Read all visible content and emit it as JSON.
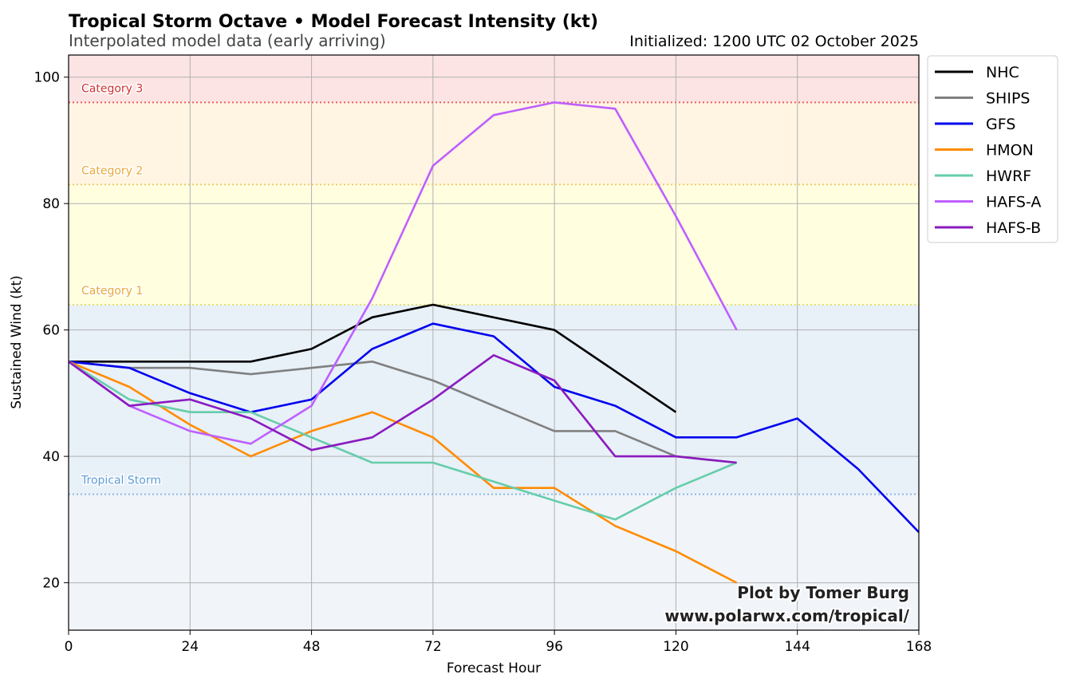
{
  "chart_data": {
    "type": "line",
    "title": "Tropical Storm Octave • Model Forecast Intensity (kt)",
    "subtitle": "Interpolated model data (early arriving)",
    "initialized": "Initialized: 1200 UTC 02 October 2025",
    "xlabel": "Forecast Hour",
    "ylabel": "Sustained Wind (kt)",
    "xlim": [
      0,
      168
    ],
    "ylim": [
      12.5,
      103.5
    ],
    "xticks": [
      0,
      24,
      48,
      72,
      96,
      120,
      144,
      168
    ],
    "yticks": [
      20,
      40,
      60,
      80,
      100
    ],
    "grid": true,
    "legend_position": "outside-upper-right",
    "bands": [
      {
        "from": 12.5,
        "to": 34,
        "color": "#f1f5fa"
      },
      {
        "from": 34,
        "to": 64,
        "color": "#e8f0f8"
      },
      {
        "from": 64,
        "to": 83,
        "color": "#ffffe0"
      },
      {
        "from": 83,
        "to": 96,
        "color": "#fff5e2"
      },
      {
        "from": 96,
        "to": 103.5,
        "color": "#fde4e4"
      }
    ],
    "thresholds": [
      {
        "label": "Tropical Storm",
        "value": 34,
        "color": "#5b9bd5",
        "line_color": "#8ab6e0"
      },
      {
        "label": "Category 1",
        "value": 64,
        "color": "#e8a93a",
        "line_color": "#e6e070"
      },
      {
        "label": "Category 2",
        "value": 83,
        "color": "#e8a93a",
        "line_color": "#f2c870"
      },
      {
        "label": "Category 3",
        "value": 96,
        "color": "#d03030",
        "line_color": "#e86060"
      }
    ],
    "series": [
      {
        "name": "NHC",
        "color": "#000000",
        "x": [
          0,
          12,
          24,
          36,
          48,
          60,
          72,
          96,
          120
        ],
        "y": [
          55,
          55,
          55,
          55,
          57,
          62,
          64,
          60,
          47
        ]
      },
      {
        "name": "SHIPS",
        "color": "#808080",
        "x": [
          0,
          12,
          24,
          36,
          48,
          60,
          72,
          96,
          108,
          120,
          132
        ],
        "y": [
          55,
          54,
          54,
          53,
          54,
          55,
          52,
          44,
          44,
          40,
          39
        ]
      },
      {
        "name": "GFS",
        "color": "#0000ee",
        "x": [
          0,
          12,
          24,
          36,
          48,
          60,
          72,
          84,
          96,
          108,
          120,
          132,
          144,
          156,
          168
        ],
        "y": [
          55,
          54,
          50,
          47,
          49,
          57,
          61,
          59,
          51,
          48,
          43,
          43,
          46,
          38,
          28
        ]
      },
      {
        "name": "HMON",
        "color": "#ff8c00",
        "x": [
          0,
          12,
          24,
          36,
          48,
          60,
          72,
          84,
          96,
          108,
          120,
          132
        ],
        "y": [
          55,
          51,
          45,
          40,
          44,
          47,
          43,
          35,
          35,
          29,
          25,
          20
        ]
      },
      {
        "name": "HWRF",
        "color": "#66cdaa",
        "x": [
          0,
          12,
          24,
          36,
          48,
          60,
          72,
          84,
          96,
          108,
          120,
          132
        ],
        "y": [
          55,
          49,
          47,
          47,
          43,
          39,
          39,
          36,
          33,
          30,
          35,
          39
        ]
      },
      {
        "name": "HAFS-A",
        "color": "#bf5fff",
        "x": [
          0,
          12,
          24,
          36,
          48,
          60,
          72,
          84,
          96,
          108,
          120,
          132
        ],
        "y": [
          55,
          48,
          44,
          42,
          48,
          65,
          86,
          94,
          96,
          95,
          78,
          60
        ]
      },
      {
        "name": "HAFS-B",
        "color": "#8a1bbf",
        "x": [
          0,
          12,
          24,
          36,
          48,
          60,
          72,
          84,
          96,
          108,
          120,
          132
        ],
        "y": [
          55,
          48,
          49,
          46,
          41,
          43,
          49,
          56,
          52,
          40,
          40,
          39
        ]
      }
    ],
    "credit_lines": [
      "Plot by Tomer Burg",
      "www.polarwx.com/tropical/"
    ]
  }
}
